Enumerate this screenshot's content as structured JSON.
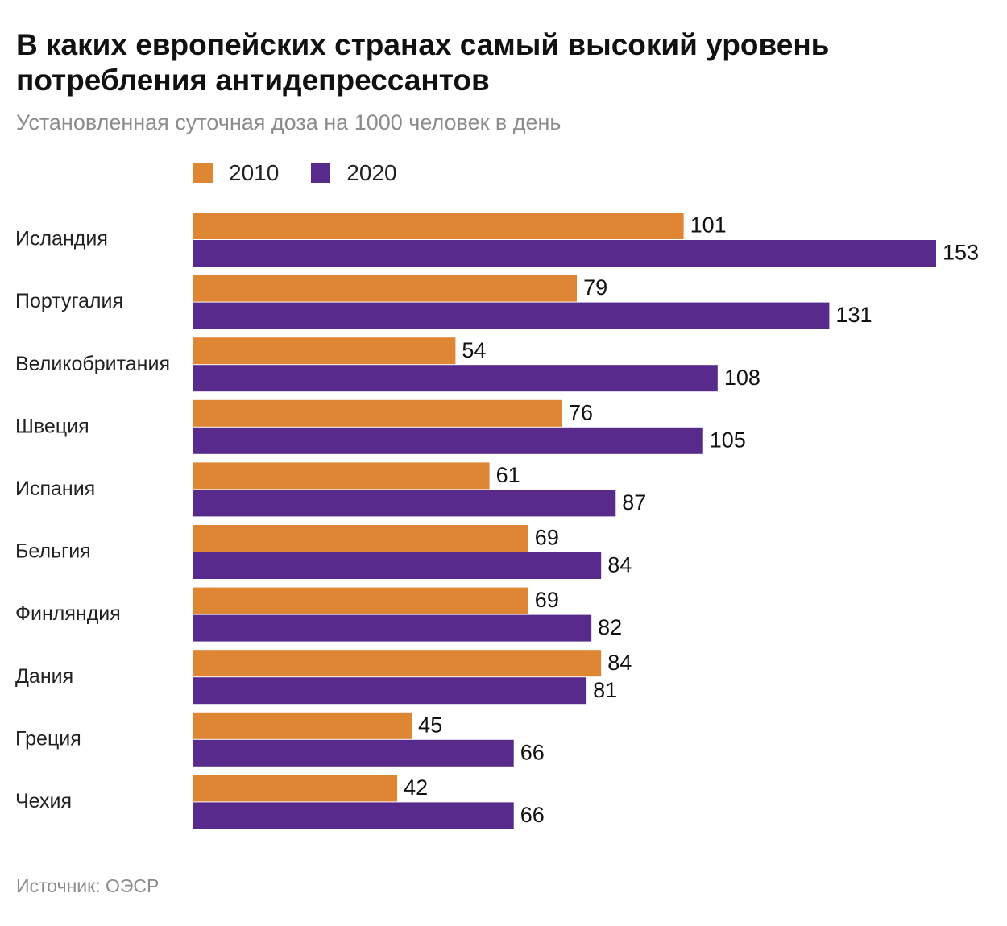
{
  "title": "В каких европейских странах самый высокий уровень потребления антидепрессантов",
  "subtitle": "Установленная суточная доза на 1000 человек в день",
  "source": "Источник: ОЭСР",
  "colors": {
    "s2010": "#de8634",
    "s2020": "#572a8c"
  },
  "chart_data": {
    "type": "bar",
    "orientation": "horizontal",
    "title": "В каких европейских странах самый высокий уровень потребления антидепрессантов",
    "subtitle": "Установленная суточная доза на 1000 человек в день",
    "categories": [
      "Исландия",
      "Португалия",
      "Великобритания",
      "Швеция",
      "Испания",
      "Бельгия",
      "Финляндия",
      "Дания",
      "Греция",
      "Чехия"
    ],
    "series": [
      {
        "name": "2010",
        "values": [
          101,
          79,
          54,
          76,
          61,
          69,
          69,
          84,
          45,
          42
        ],
        "color": "#de8634"
      },
      {
        "name": "2020",
        "values": [
          153,
          131,
          108,
          105,
          87,
          84,
          82,
          81,
          66,
          66
        ],
        "color": "#572a8c"
      }
    ],
    "xlim": [
      0,
      153
    ],
    "grid": false,
    "legend": "top-left"
  }
}
